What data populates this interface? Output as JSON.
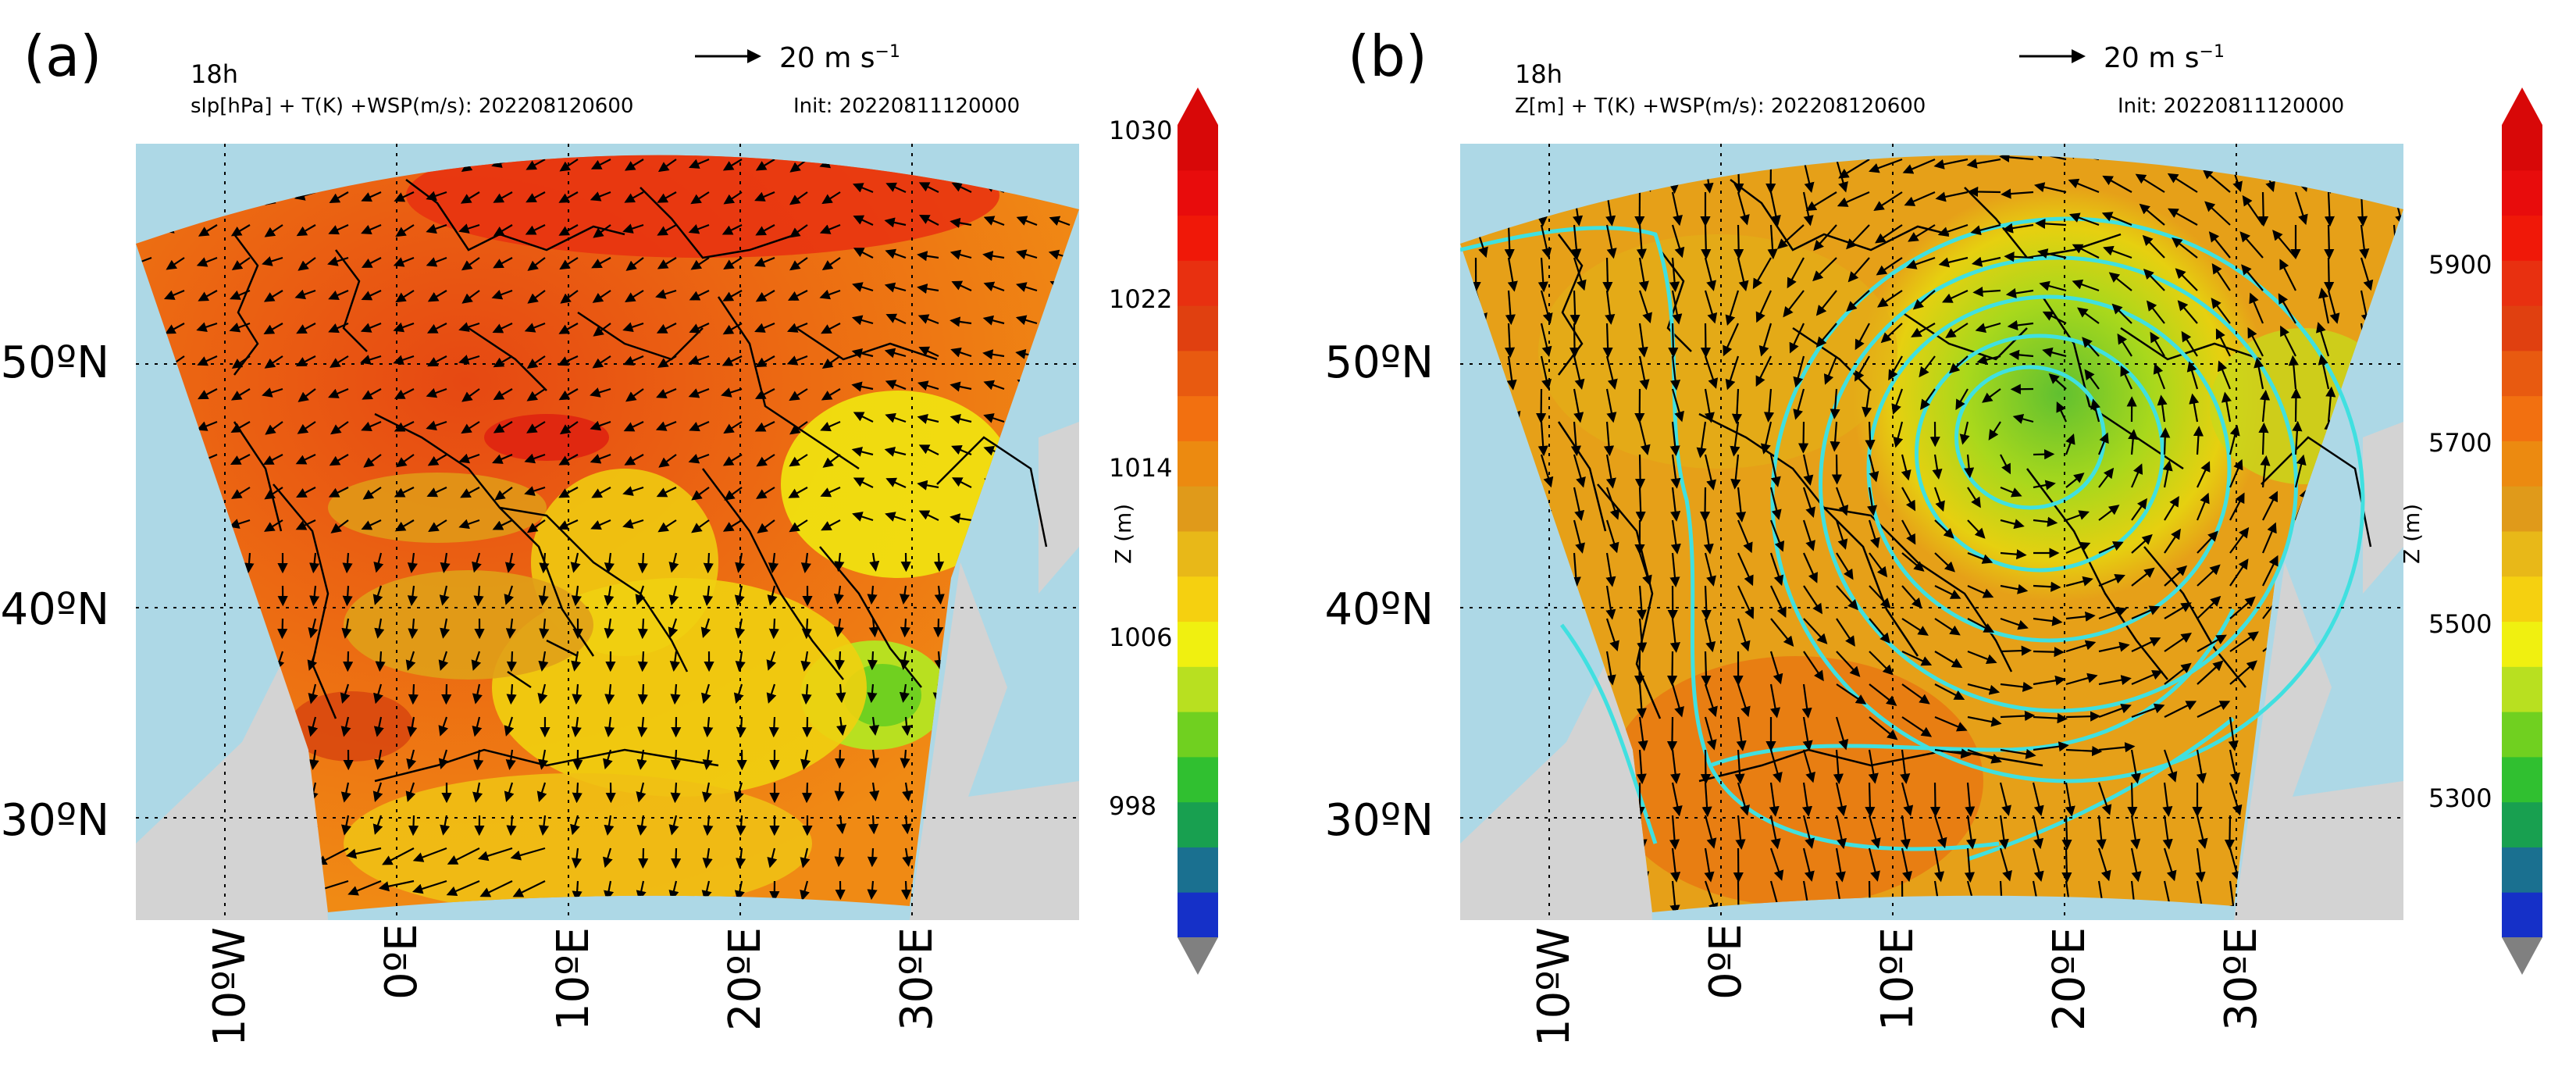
{
  "colors": {
    "ocean": "#add8e6",
    "land": "#d3d3d3",
    "border": "#000000",
    "contour": "#40e0e0"
  },
  "colorbar_palette": [
    "#1530c8",
    "#1a7090",
    "#18a050",
    "#30c030",
    "#70d020",
    "#b8e020",
    "#f0f010",
    "#f5d010",
    "#e8b818",
    "#e09a1a",
    "#ec8a10",
    "#f27010",
    "#e85a10",
    "#e04010",
    "#e83010",
    "#f01808",
    "#e80c0c",
    "#d80808"
  ],
  "panels": [
    {
      "label": "(a)",
      "time": "18h",
      "description": "slp[hPa] + T(K) +WSP(m/s): 202208120600",
      "init": "Init: 20220811120000",
      "scale_text": "20 m s",
      "scale_exp": "−1",
      "lat_labels": [
        "50ºN",
        "40ºN",
        "30ºN"
      ],
      "lon_labels": [
        "10ºW",
        "0ºE",
        "10ºE",
        "20ºE",
        "30ºE"
      ],
      "colorbar": {
        "title": "Z (m)",
        "ticks": [
          "1030",
          "1022",
          "1014",
          "1006",
          "998"
        ]
      }
    },
    {
      "label": "(b)",
      "time": "18h",
      "description": "Z[m] + T(K) +WSP(m/s): 202208120600",
      "init": "Init: 20220811120000",
      "scale_text": "20 m s",
      "scale_exp": "−1",
      "lat_labels": [
        "50ºN",
        "40ºN",
        "30ºN"
      ],
      "lon_labels": [
        "10ºW",
        "0ºE",
        "10ºE",
        "20ºE",
        "30ºE"
      ],
      "colorbar": {
        "title": "Z (m)",
        "ticks": [
          "5900",
          "5700",
          "5500",
          "5300"
        ]
      }
    }
  ]
}
